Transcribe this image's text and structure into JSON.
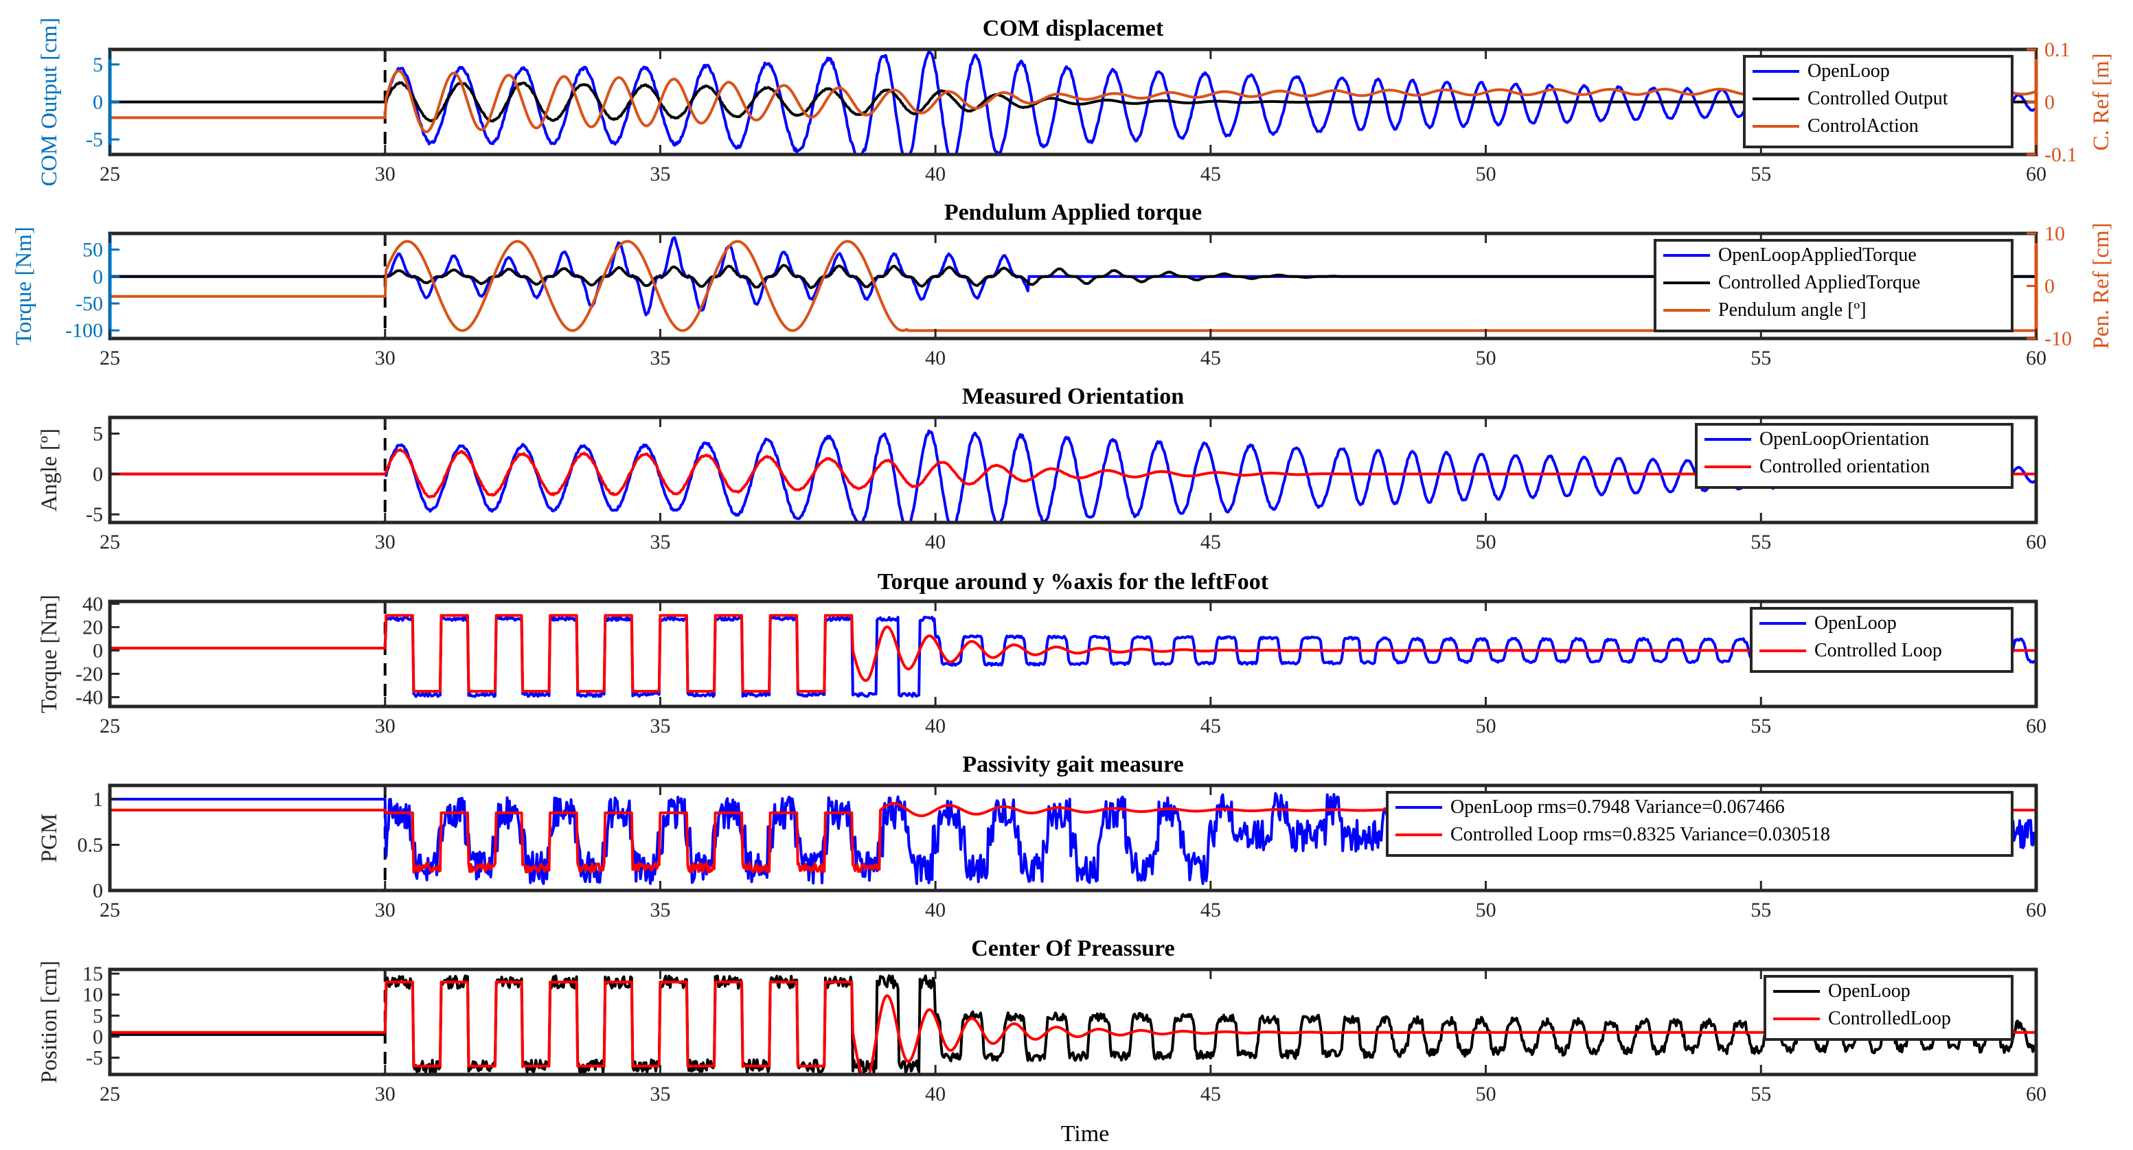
{
  "figure": {
    "xlabel": "Time",
    "xlim": [
      25,
      60
    ],
    "xticks": [
      25,
      30,
      35,
      40,
      45,
      50,
      55,
      60
    ]
  },
  "colors": {
    "blue": "#0000ff",
    "black": "#000000",
    "orange": "#d95319",
    "red": "#ff0000",
    "axisBlue": "#0072bd"
  },
  "chart_data": [
    {
      "type": "line",
      "title": "COM displacemet",
      "ylabel": "COM Output [cm]",
      "ylim": [
        -7,
        7
      ],
      "yticks": [
        -5,
        0,
        5
      ],
      "ytick_labels": [
        "-5",
        "0",
        "5"
      ],
      "ylabel_right": "C. Ref [m]",
      "ylim_right": [
        -0.1,
        0.1
      ],
      "yticks_right": [
        -0.1,
        0,
        0.1
      ],
      "ytick_labels_right": [
        "-0.1",
        "0",
        "0.1"
      ],
      "legend": [
        "OpenLoop",
        "Controlled Output",
        "ControlAction"
      ],
      "series": [
        {
          "name": "OpenLoop",
          "color": "blue",
          "shape": "osc",
          "pre": 0,
          "A": [
            5,
            5,
            5,
            6,
            7.5,
            5,
            4.2,
            3.5,
            2.8,
            2.2,
            1.7,
            1.3,
            1
          ],
          "bias": -0.5,
          "freq": [
            0.9,
            1.2,
            1.6,
            2.0
          ]
        },
        {
          "name": "Controlled Output",
          "color": "black",
          "shape": "osc",
          "pre": 0,
          "A": [
            2.5,
            2.5,
            2.2,
            1.8,
            1.5,
            0.3,
            0.1,
            0
          ],
          "bias": 0,
          "freq": [
            0.9,
            1.0
          ]
        },
        {
          "name": "ControlAction",
          "color": "orange",
          "axis": "right",
          "shape": "action",
          "pre": -0.03,
          "A": [
            0.06,
            0.05,
            0.045,
            0.03,
            0.02,
            0.005
          ],
          "settle": 0.02
        }
      ]
    },
    {
      "type": "line",
      "title": "Pendulum Applied torque",
      "ylabel": "Torque [Nm]",
      "ylim": [
        -115,
        80
      ],
      "yticks": [
        -100,
        -50,
        0,
        50
      ],
      "ytick_labels": [
        "-100",
        "-50",
        "0",
        "50"
      ],
      "ylabel_right": "Pen. Ref [cm]",
      "ylim_right": [
        -10,
        10
      ],
      "yticks_right": [
        -10,
        0,
        10
      ],
      "ytick_labels_right": [
        "-10",
        "0",
        "10"
      ],
      "legend": [
        "OpenLoopAppliedTorque",
        "Controlled AppliedTorque",
        "Pendulum angle [º]"
      ],
      "series": [
        {
          "name": "OpenLoopAppliedTorque",
          "color": "blue",
          "shape": "spiky",
          "pre": 0,
          "A": [
            60,
            50,
            105,
            60,
            60,
            50,
            0
          ],
          "end": 41.7
        },
        {
          "name": "Controlled AppliedTorque",
          "color": "black",
          "shape": "spiky",
          "pre": 0,
          "A": [
            15,
            20,
            25,
            30,
            25,
            20,
            8,
            0
          ],
          "end": 60
        },
        {
          "name": "Pendulum angle [º]",
          "color": "orange",
          "axis": "right",
          "shape": "sine",
          "pre": -2,
          "A": 8.5,
          "freq": 0.5,
          "start": 30,
          "stop": 39.5,
          "after": -8.5
        }
      ]
    },
    {
      "type": "line",
      "title": "Measured Orientation",
      "ylabel": "Angle [º]",
      "ylim": [
        -6,
        7
      ],
      "yticks": [
        -5,
        0,
        5
      ],
      "ytick_labels": [
        "-5",
        "0",
        "5"
      ],
      "legend": [
        "OpenLoopOrientation",
        "Controlled orientation"
      ],
      "series": [
        {
          "name": "OpenLoopOrientation",
          "color": "blue",
          "shape": "osc",
          "pre": 0,
          "A": [
            4,
            4,
            4,
            5,
            6,
            5,
            4.2,
            3.5,
            2.8,
            2.2,
            1.6,
            1.2,
            0.9
          ],
          "bias": -0.6,
          "freq": [
            0.9,
            1.2,
            1.6,
            2.0
          ]
        },
        {
          "name": "Controlled orientation",
          "color": "red",
          "shape": "osc",
          "pre": 0,
          "A": [
            3,
            2.5,
            2.5,
            2,
            1.5,
            0.5,
            0.2,
            0
          ],
          "bias": 0,
          "freq": [
            0.9,
            1.0
          ]
        }
      ]
    },
    {
      "type": "line",
      "title": "Torque around y %axis for the leftFoot",
      "ylabel": "Torque [Nm]",
      "ylim": [
        -48,
        42
      ],
      "yticks": [
        -40,
        -20,
        0,
        20,
        40
      ],
      "ytick_labels": [
        "-40",
        "-20",
        "0",
        "20",
        "40"
      ],
      "legend": [
        "OpenLoop",
        "Controlled Loop"
      ],
      "series": [
        {
          "name": "OpenLoop",
          "color": "blue",
          "shape": "square",
          "pre": 2,
          "hi": 27,
          "lo": -38,
          "A_late": [
            28,
            25,
            20,
            15,
            12,
            10
          ],
          "freq": [
            1.0,
            1.3,
            1.7,
            2.1
          ]
        },
        {
          "name": "Controlled Loop",
          "color": "red",
          "shape": "square_decay",
          "pre": 2,
          "hi": 30,
          "lo": -35,
          "settle": 0
        }
      ]
    },
    {
      "type": "line",
      "title": "Passivity gait measure",
      "ylabel": "PGM",
      "ylim": [
        0,
        1.15
      ],
      "yticks": [
        0,
        0.5,
        1
      ],
      "ytick_labels": [
        "0",
        "0.5",
        "1"
      ],
      "legend": [
        "OpenLoop rms=0.7948 Variance=0.067466",
        "Controlled Loop rms=0.8325 Variance=0.030518"
      ],
      "series": [
        {
          "name": "OpenLoop",
          "color": "blue",
          "shape": "pgm_open",
          "pre": 1.0
        },
        {
          "name": "Controlled Loop",
          "color": "red",
          "shape": "pgm_ctrl",
          "pre": 0.88
        }
      ]
    },
    {
      "type": "line",
      "title": "Center Of Preassure",
      "ylabel": "Position [cm]",
      "ylim": [
        -9,
        16
      ],
      "yticks": [
        -5,
        0,
        5,
        10,
        15
      ],
      "ytick_labels": [
        "-5",
        "0",
        "5",
        "10",
        "15"
      ],
      "legend": [
        "OpenLoop",
        "ControlledLoop"
      ],
      "series": [
        {
          "name": "OpenLoop",
          "color": "black",
          "shape": "square",
          "pre": 0.5,
          "hi": 13,
          "lo": -7,
          "A_late": [
            12,
            11,
            9,
            7,
            5,
            4,
            3
          ],
          "freq": [
            1.0,
            1.3,
            1.7,
            2.1
          ]
        },
        {
          "name": "ControlledLoop",
          "color": "red",
          "shape": "square_decay",
          "pre": 1,
          "hi": 13,
          "lo": -7,
          "settle": 1
        }
      ]
    }
  ]
}
